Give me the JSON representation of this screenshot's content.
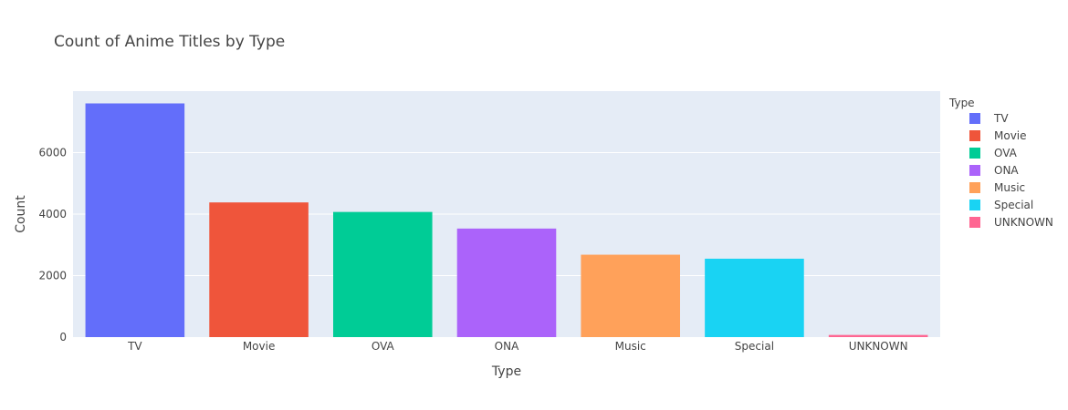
{
  "chart_data": {
    "type": "bar",
    "title": "Count of Anime Titles by Type",
    "xlabel": "Type",
    "ylabel": "Count",
    "categories": [
      "TV",
      "Movie",
      "OVA",
      "ONA",
      "Music",
      "Special",
      "UNKNOWN"
    ],
    "values": [
      7600,
      4380,
      4070,
      3530,
      2680,
      2550,
      70
    ],
    "colors": [
      "#636efa",
      "#ef553b",
      "#00cc96",
      "#ab63fa",
      "#ffa15a",
      "#19d3f3",
      "#ff6692"
    ],
    "y_ticks": [
      0,
      2000,
      4000,
      6000
    ],
    "y_tick_labels": [
      "0",
      "2000",
      "4000",
      "6000"
    ],
    "ylim": [
      0,
      8000
    ],
    "grid": true,
    "legend": {
      "title": "Type",
      "placement": "right",
      "entries": [
        "TV",
        "Movie",
        "OVA",
        "ONA",
        "Music",
        "Special",
        "UNKNOWN"
      ]
    }
  }
}
